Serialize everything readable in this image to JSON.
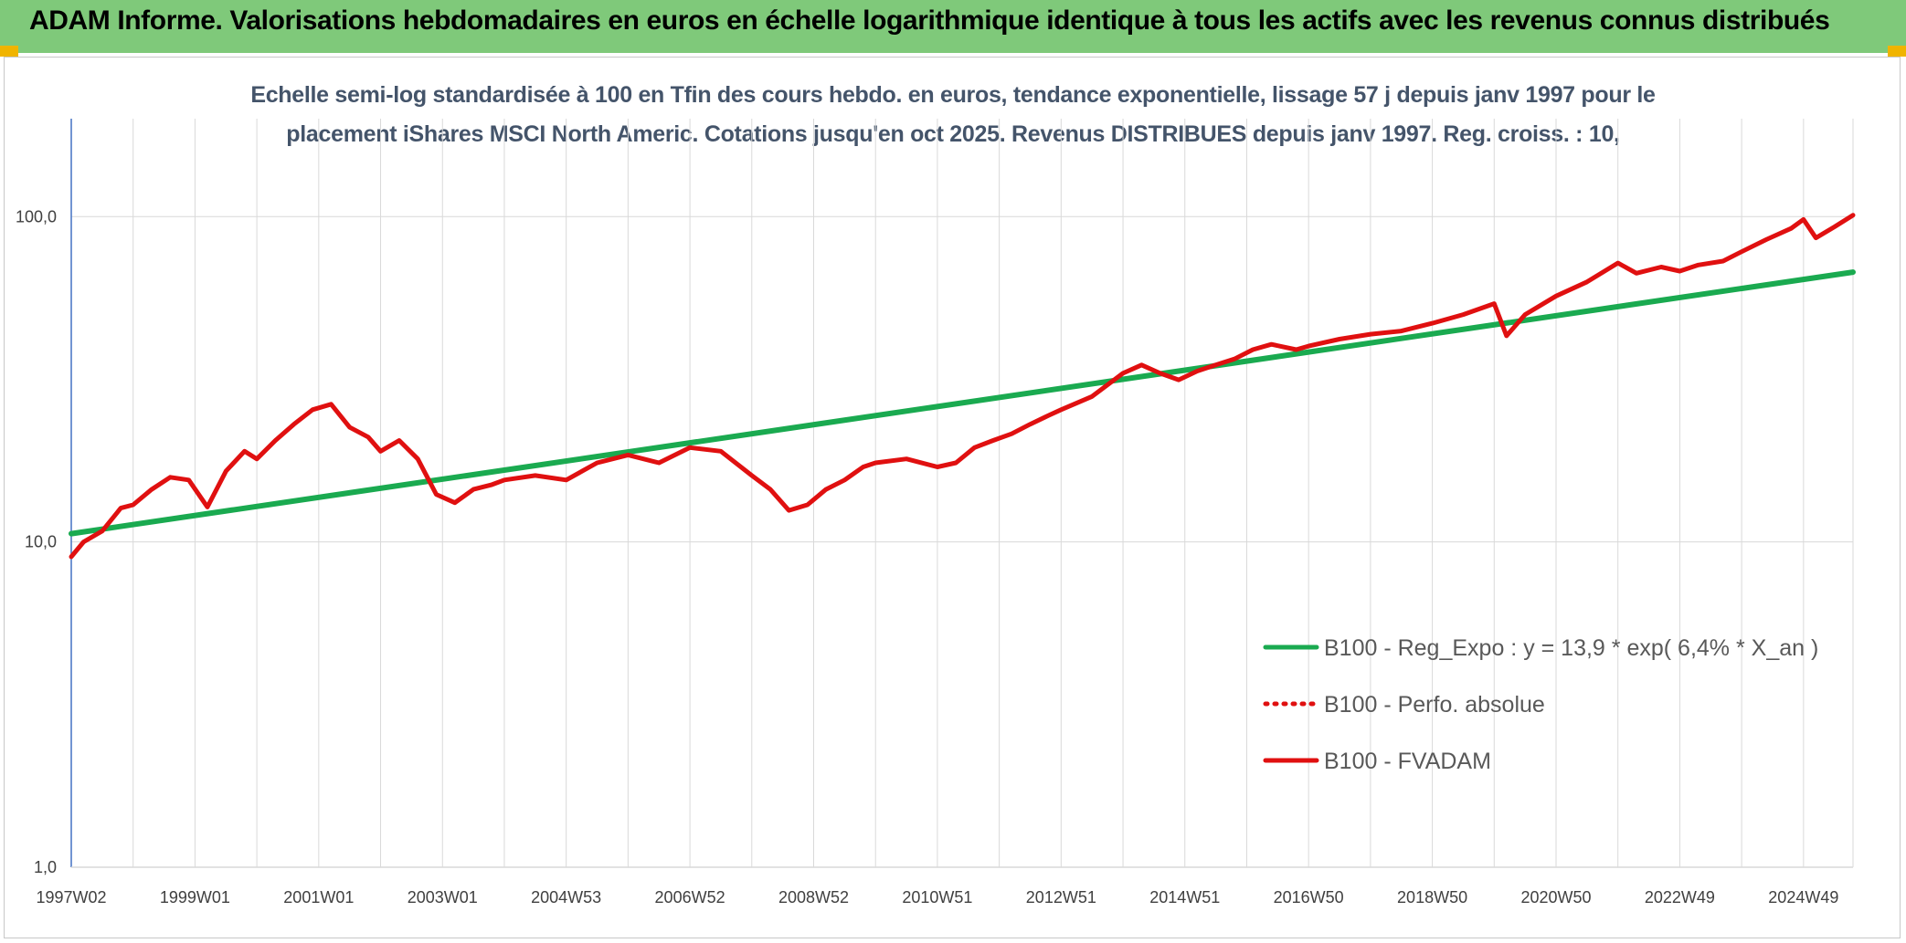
{
  "header": {
    "title": "ADAM Informe. Valorisations hebdomadaires en euros en échelle logarithmique identique à tous les actifs avec les revenus connus distribués"
  },
  "colors": {
    "header_bg": "#7fc97a",
    "reg_line": "#1aaa50",
    "fvadam_line": "#e01010",
    "perfo_line": "#e01010",
    "axis": "#4472c4",
    "grid": "#d9d9d9"
  },
  "chart_data": {
    "type": "line",
    "subtitle_lines": [
      "Echelle semi-log standardisée à 100 en Tfin des cours hebdo. en euros, tendance exponentielle, lissage 57 j depuis janv 1997 pour le",
      "placement iShares MSCI North Americ. Cotations jusqu'en oct 2025. Revenus DISTRIBUES depuis janv 1997. Reg. croiss. : 10,"
    ],
    "y_scale": "log",
    "ylim": [
      1,
      200
    ],
    "yticks": [
      1,
      10,
      100
    ],
    "ytick_labels": [
      "1,0",
      "10,0",
      "100,0"
    ],
    "xlim": [
      1997.0,
      2025.8
    ],
    "x_tick_positions": [
      1997.0,
      1999.0,
      2001.0,
      2003.0,
      2005.0,
      2007.0,
      2009.0,
      2011.0,
      2013.0,
      2015.0,
      2017.0,
      2019.0,
      2021.0,
      2023.0,
      2025.0
    ],
    "x_tick_labels": [
      "1997W02",
      "1999W01",
      "2001W01",
      "2003W01",
      "2004W53",
      "2006W52",
      "2008W52",
      "2010W51",
      "2012W51",
      "2014W51",
      "2016W50",
      "2018W50",
      "2020W50",
      "2022W49",
      "2024W49"
    ],
    "grid": "vertical and horizontal",
    "legend_position": "right",
    "series": [
      {
        "name": "B100 - Reg_Expo : y = 13,9 * exp( 6,4% *  X_an )",
        "style": "solid",
        "color": "#1aaa50",
        "x": [
          1997.0,
          2025.8
        ],
        "y": [
          10.6,
          67.5
        ]
      },
      {
        "name": "B100 - Perfo. absolue",
        "style": "dotted",
        "color": "#e01010",
        "x": [],
        "y": []
      },
      {
        "name": "B100 - FVADAM",
        "style": "solid",
        "color": "#e01010",
        "x": [
          1997.0,
          1997.2,
          1997.5,
          1997.8,
          1998.0,
          1998.3,
          1998.6,
          1998.9,
          1999.2,
          1999.5,
          1999.8,
          2000.0,
          2000.3,
          2000.6,
          2000.9,
          2001.2,
          2001.5,
          2001.8,
          2002.0,
          2002.3,
          2002.6,
          2002.9,
          2003.2,
          2003.5,
          2003.8,
          2004.0,
          2004.5,
          2005.0,
          2005.5,
          2006.0,
          2006.5,
          2007.0,
          2007.5,
          2008.0,
          2008.3,
          2008.6,
          2008.9,
          2009.2,
          2009.5,
          2009.8,
          2010.0,
          2010.5,
          2011.0,
          2011.3,
          2011.6,
          2011.9,
          2012.2,
          2012.5,
          2012.8,
          2013.0,
          2013.5,
          2014.0,
          2014.3,
          2014.6,
          2014.9,
          2015.2,
          2015.5,
          2015.8,
          2016.1,
          2016.4,
          2016.8,
          2017.0,
          2017.5,
          2018.0,
          2018.5,
          2019.0,
          2019.5,
          2020.0,
          2020.2,
          2020.5,
          2021.0,
          2021.5,
          2022.0,
          2022.3,
          2022.7,
          2023.0,
          2023.3,
          2023.7,
          2024.0,
          2024.4,
          2024.8,
          2025.0,
          2025.2,
          2025.5,
          2025.8
        ],
        "y": [
          9.0,
          10.0,
          10.8,
          12.7,
          13.0,
          14.5,
          15.8,
          15.5,
          12.8,
          16.5,
          19.0,
          18.0,
          20.5,
          23.0,
          25.5,
          26.5,
          22.5,
          21.0,
          19.0,
          20.5,
          18.0,
          14.0,
          13.2,
          14.5,
          15.0,
          15.5,
          16.0,
          15.5,
          17.5,
          18.5,
          17.5,
          19.5,
          19.0,
          16.0,
          14.5,
          12.5,
          13.0,
          14.5,
          15.5,
          17.0,
          17.5,
          18.0,
          17.0,
          17.5,
          19.5,
          20.5,
          21.5,
          23.0,
          24.5,
          25.5,
          28.0,
          33.0,
          35.0,
          33.0,
          31.5,
          33.5,
          35.0,
          36.5,
          39.0,
          40.5,
          39.0,
          40.0,
          42.0,
          43.5,
          44.5,
          47.0,
          50.0,
          54.0,
          43.0,
          50.0,
          57.0,
          63.0,
          72.0,
          67.0,
          70.0,
          68.0,
          71.0,
          73.0,
          78.0,
          85.0,
          92.0,
          98.0,
          86.0,
          93.0,
          101.0
        ]
      }
    ]
  }
}
